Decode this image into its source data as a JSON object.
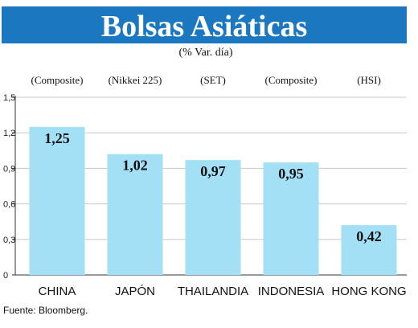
{
  "title": "Bolsas Asiáticas",
  "subtitle": "(% Var. día)",
  "source": "Fuente: Bloomberg.",
  "colors": {
    "header": "#1b78c0",
    "bar": "#a3dff5",
    "grid": "#c8c8c8"
  },
  "chart_data": {
    "type": "bar",
    "categories": [
      "CHINA",
      "JAPÓN",
      "THAILANDIA",
      "INDONESIA",
      "HONG KONG"
    ],
    "index_names": [
      "(Composite)",
      "(Nikkei 225)",
      "(SET)",
      "(Composite)",
      "(HSI)"
    ],
    "values": [
      1.25,
      1.02,
      0.97,
      0.95,
      0.42
    ],
    "value_labels": [
      "1,25",
      "1,02",
      "0,97",
      "0,95",
      "0,42"
    ],
    "yticks": [
      0,
      0.3,
      0.6,
      0.9,
      1.2,
      1.5
    ],
    "ytick_labels": [
      "0",
      "0,3",
      "0,6",
      "0,9",
      "1,2",
      "1,5"
    ],
    "ylim": [
      0,
      1.5
    ],
    "grid": true,
    "legend": "none"
  }
}
